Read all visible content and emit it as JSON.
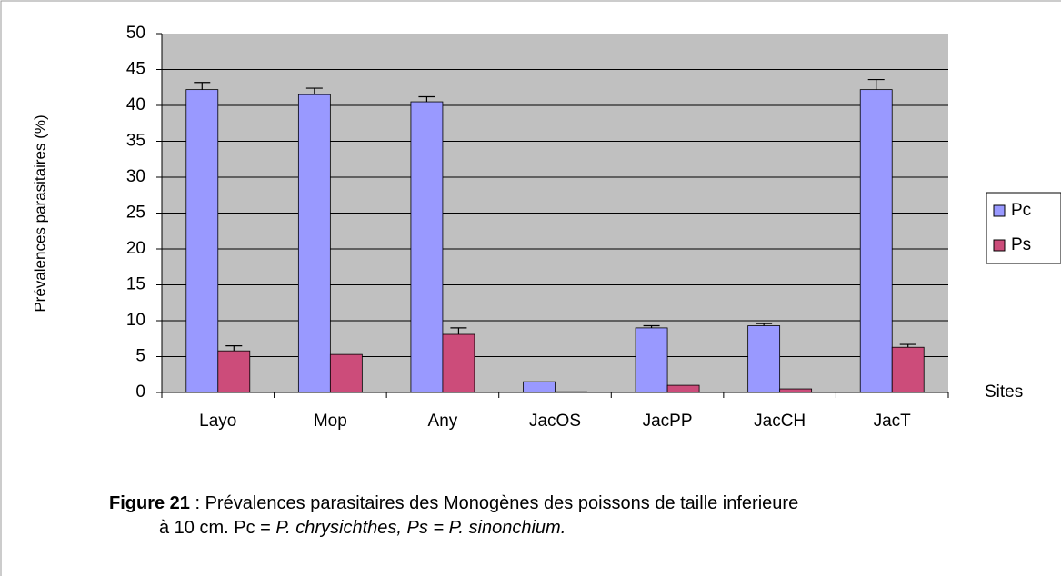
{
  "chart_data": {
    "type": "bar",
    "categories": [
      "Layo",
      "Mop",
      "Any",
      "JacOS",
      "JacPP",
      "JacCH",
      "JacT"
    ],
    "series": [
      {
        "name": "Pc",
        "color": "#9999ff",
        "values": [
          42.2,
          41.5,
          40.5,
          1.5,
          9.0,
          9.3,
          42.2
        ],
        "errors": [
          1.0,
          0.9,
          0.7,
          0,
          0.3,
          0.3,
          1.4
        ]
      },
      {
        "name": "Ps",
        "color": "#cc4c7a",
        "values": [
          5.8,
          5.3,
          8.1,
          0.1,
          1.0,
          0.5,
          6.3
        ],
        "errors": [
          0.7,
          0,
          0.9,
          0,
          0,
          0,
          0.4
        ]
      }
    ],
    "ylabel": "Prévalences parasitaires (%)",
    "xlabel": "Sites",
    "ylim": [
      0,
      50
    ],
    "yticks": [
      0,
      5,
      10,
      15,
      20,
      25,
      30,
      35,
      40,
      45,
      50
    ],
    "grid": true,
    "legend": "right",
    "caption": {
      "label": "Figure 21",
      "text": " : Prévalences parasitaires des Monogènes des poissons de taille inferieure",
      "line2": "à 10 cm. Pc = ",
      "line2_italic": "P. chrysichthes, Ps = P. sinonchium."
    }
  }
}
